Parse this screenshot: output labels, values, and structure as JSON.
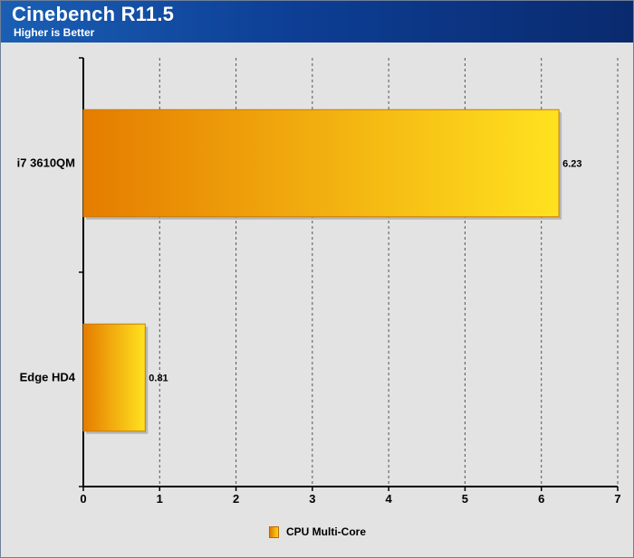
{
  "header": {
    "title": "Cinebench R11.5",
    "subtitle": "Higher is Better"
  },
  "colors": {
    "bar_start": "#e57c00",
    "bar_end": "#ffe21f",
    "bar_border": "#c87a10",
    "header_start": "#1a5fb4",
    "header_end": "#0a2a6e",
    "plot_bg": "#e3e3e3"
  },
  "chart_data": {
    "type": "bar",
    "orientation": "horizontal",
    "categories": [
      "i7 3610QM",
      "Edge HD4"
    ],
    "series": [
      {
        "name": "CPU Multi-Core",
        "values": [
          6.23,
          0.81
        ],
        "labels": [
          "6.23",
          "0.81"
        ]
      }
    ],
    "xlim": [
      0,
      7
    ],
    "xticks": [
      "0",
      "1",
      "2",
      "3",
      "4",
      "5",
      "6",
      "7"
    ],
    "grid": "vertical dashed",
    "legend": "bottom-center"
  }
}
